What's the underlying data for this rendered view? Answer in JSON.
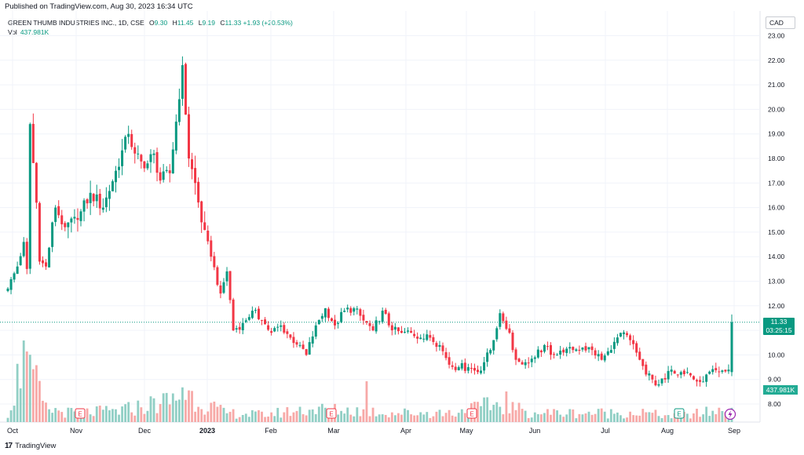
{
  "header": {
    "published": "Published on TradingView.com, Aug 30, 2023 16:34 UTC"
  },
  "legend": {
    "symbol": "GREEN THUMB INDUSTRIES INC., 1D, CSE",
    "o_label": "O",
    "o_value": "9.30",
    "h_label": "H",
    "h_value": "11.45",
    "l_label": "L",
    "l_value": "9.19",
    "c_label": "C",
    "c_value": "11.33",
    "change": "+1.93 (+20.53%)",
    "vol_label": "Vol",
    "vol_value": "437.981K"
  },
  "currency": "CAD",
  "footer": {
    "logo": "17",
    "brand": "TradingView"
  },
  "price_tag": {
    "price": "11.33",
    "countdown": "03:25:15"
  },
  "volume_tag": "437.981K",
  "colors": {
    "up": "#089981",
    "down": "#f23645",
    "vol_up": "#91cfc5",
    "vol_down": "#f7a9a7"
  },
  "chart_data": {
    "type": "candlestick",
    "x_labels": [
      "Oct",
      "Nov",
      "Dec",
      "2023",
      "Feb",
      "Mar",
      "Apr",
      "May",
      "Jun",
      "Jul",
      "Aug",
      "Sep"
    ],
    "y_ticks": [
      "8.00",
      "9.00",
      "10.00",
      "11.00",
      "12.00",
      "13.00",
      "14.00",
      "15.00",
      "16.00",
      "17.00",
      "18.00",
      "19.00",
      "20.00",
      "21.00",
      "22.00",
      "23.00"
    ],
    "ylim": [
      7.5,
      23.2
    ],
    "last_close": 11.33,
    "earnings_markers": [
      "Nov",
      "Mar",
      "May",
      "Aug"
    ],
    "dividend_marker": "Sep",
    "anchors": [
      [
        0,
        12.7
      ],
      [
        3,
        13.6
      ],
      [
        5,
        14.6
      ],
      [
        6,
        13.5
      ],
      [
        7,
        19.4
      ],
      [
        9,
        16.2
      ],
      [
        10,
        13.8
      ],
      [
        12,
        13.6
      ],
      [
        15,
        16.0
      ],
      [
        18,
        15.2
      ],
      [
        22,
        15.5
      ],
      [
        26,
        16.6
      ],
      [
        30,
        16.0
      ],
      [
        34,
        17.5
      ],
      [
        38,
        19.0
      ],
      [
        40,
        18.2
      ],
      [
        43,
        17.6
      ],
      [
        46,
        18.2
      ],
      [
        48,
        17.1
      ],
      [
        51,
        17.4
      ],
      [
        53,
        19.5
      ],
      [
        55,
        21.8
      ],
      [
        57,
        18.0
      ],
      [
        59,
        17.0
      ],
      [
        61,
        15.4
      ],
      [
        64,
        14.0
      ],
      [
        67,
        12.5
      ],
      [
        69,
        13.4
      ],
      [
        71,
        11.0
      ],
      [
        74,
        11.3
      ],
      [
        77,
        11.8
      ],
      [
        80,
        11.4
      ],
      [
        83,
        10.9
      ],
      [
        86,
        11.2
      ],
      [
        89,
        10.7
      ],
      [
        92,
        10.4
      ],
      [
        94,
        10.0
      ],
      [
        97,
        11.2
      ],
      [
        100,
        11.9
      ],
      [
        103,
        11.2
      ],
      [
        106,
        11.8
      ],
      [
        109,
        11.9
      ],
      [
        112,
        11.4
      ],
      [
        115,
        11.0
      ],
      [
        118,
        11.8
      ],
      [
        121,
        11.0
      ],
      [
        124,
        10.9
      ],
      [
        127,
        10.9
      ],
      [
        130,
        10.7
      ],
      [
        133,
        10.7
      ],
      [
        136,
        10.4
      ],
      [
        139,
        9.6
      ],
      [
        142,
        9.5
      ],
      [
        145,
        9.5
      ],
      [
        148,
        9.3
      ],
      [
        150,
        9.7
      ],
      [
        152,
        10.2
      ],
      [
        155,
        11.7
      ],
      [
        158,
        10.9
      ],
      [
        160,
        9.8
      ],
      [
        163,
        9.7
      ],
      [
        166,
        9.9
      ],
      [
        169,
        10.4
      ],
      [
        172,
        10.0
      ],
      [
        175,
        10.1
      ],
      [
        178,
        10.2
      ],
      [
        181,
        10.3
      ],
      [
        184,
        10.2
      ],
      [
        187,
        9.8
      ],
      [
        190,
        10.2
      ],
      [
        193,
        10.9
      ],
      [
        196,
        10.6
      ],
      [
        199,
        9.8
      ],
      [
        201,
        9.2
      ],
      [
        203,
        9.0
      ],
      [
        205,
        8.8
      ],
      [
        207,
        9.0
      ],
      [
        209,
        9.4
      ],
      [
        212,
        9.3
      ],
      [
        214,
        9.3
      ],
      [
        216,
        9.0
      ],
      [
        218,
        8.9
      ],
      [
        220,
        9.2
      ],
      [
        224,
        9.3
      ],
      [
        227,
        9.4
      ],
      [
        228,
        11.33
      ]
    ],
    "volume_profile": [
      [
        0,
        0.05
      ],
      [
        5,
        0.35
      ],
      [
        7,
        0.28
      ],
      [
        12,
        0.07
      ],
      [
        20,
        0.05
      ],
      [
        35,
        0.06
      ],
      [
        52,
        0.12
      ],
      [
        56,
        0.16
      ],
      [
        60,
        0.12
      ],
      [
        68,
        0.05
      ],
      [
        80,
        0.04
      ],
      [
        95,
        0.07
      ],
      [
        113,
        0.06
      ],
      [
        120,
        0.05
      ],
      [
        140,
        0.05
      ],
      [
        155,
        0.1
      ],
      [
        158,
        0.08
      ],
      [
        165,
        0.05
      ],
      [
        190,
        0.05
      ],
      [
        200,
        0.05
      ],
      [
        210,
        0.03
      ],
      [
        228,
        0.07
      ]
    ]
  }
}
